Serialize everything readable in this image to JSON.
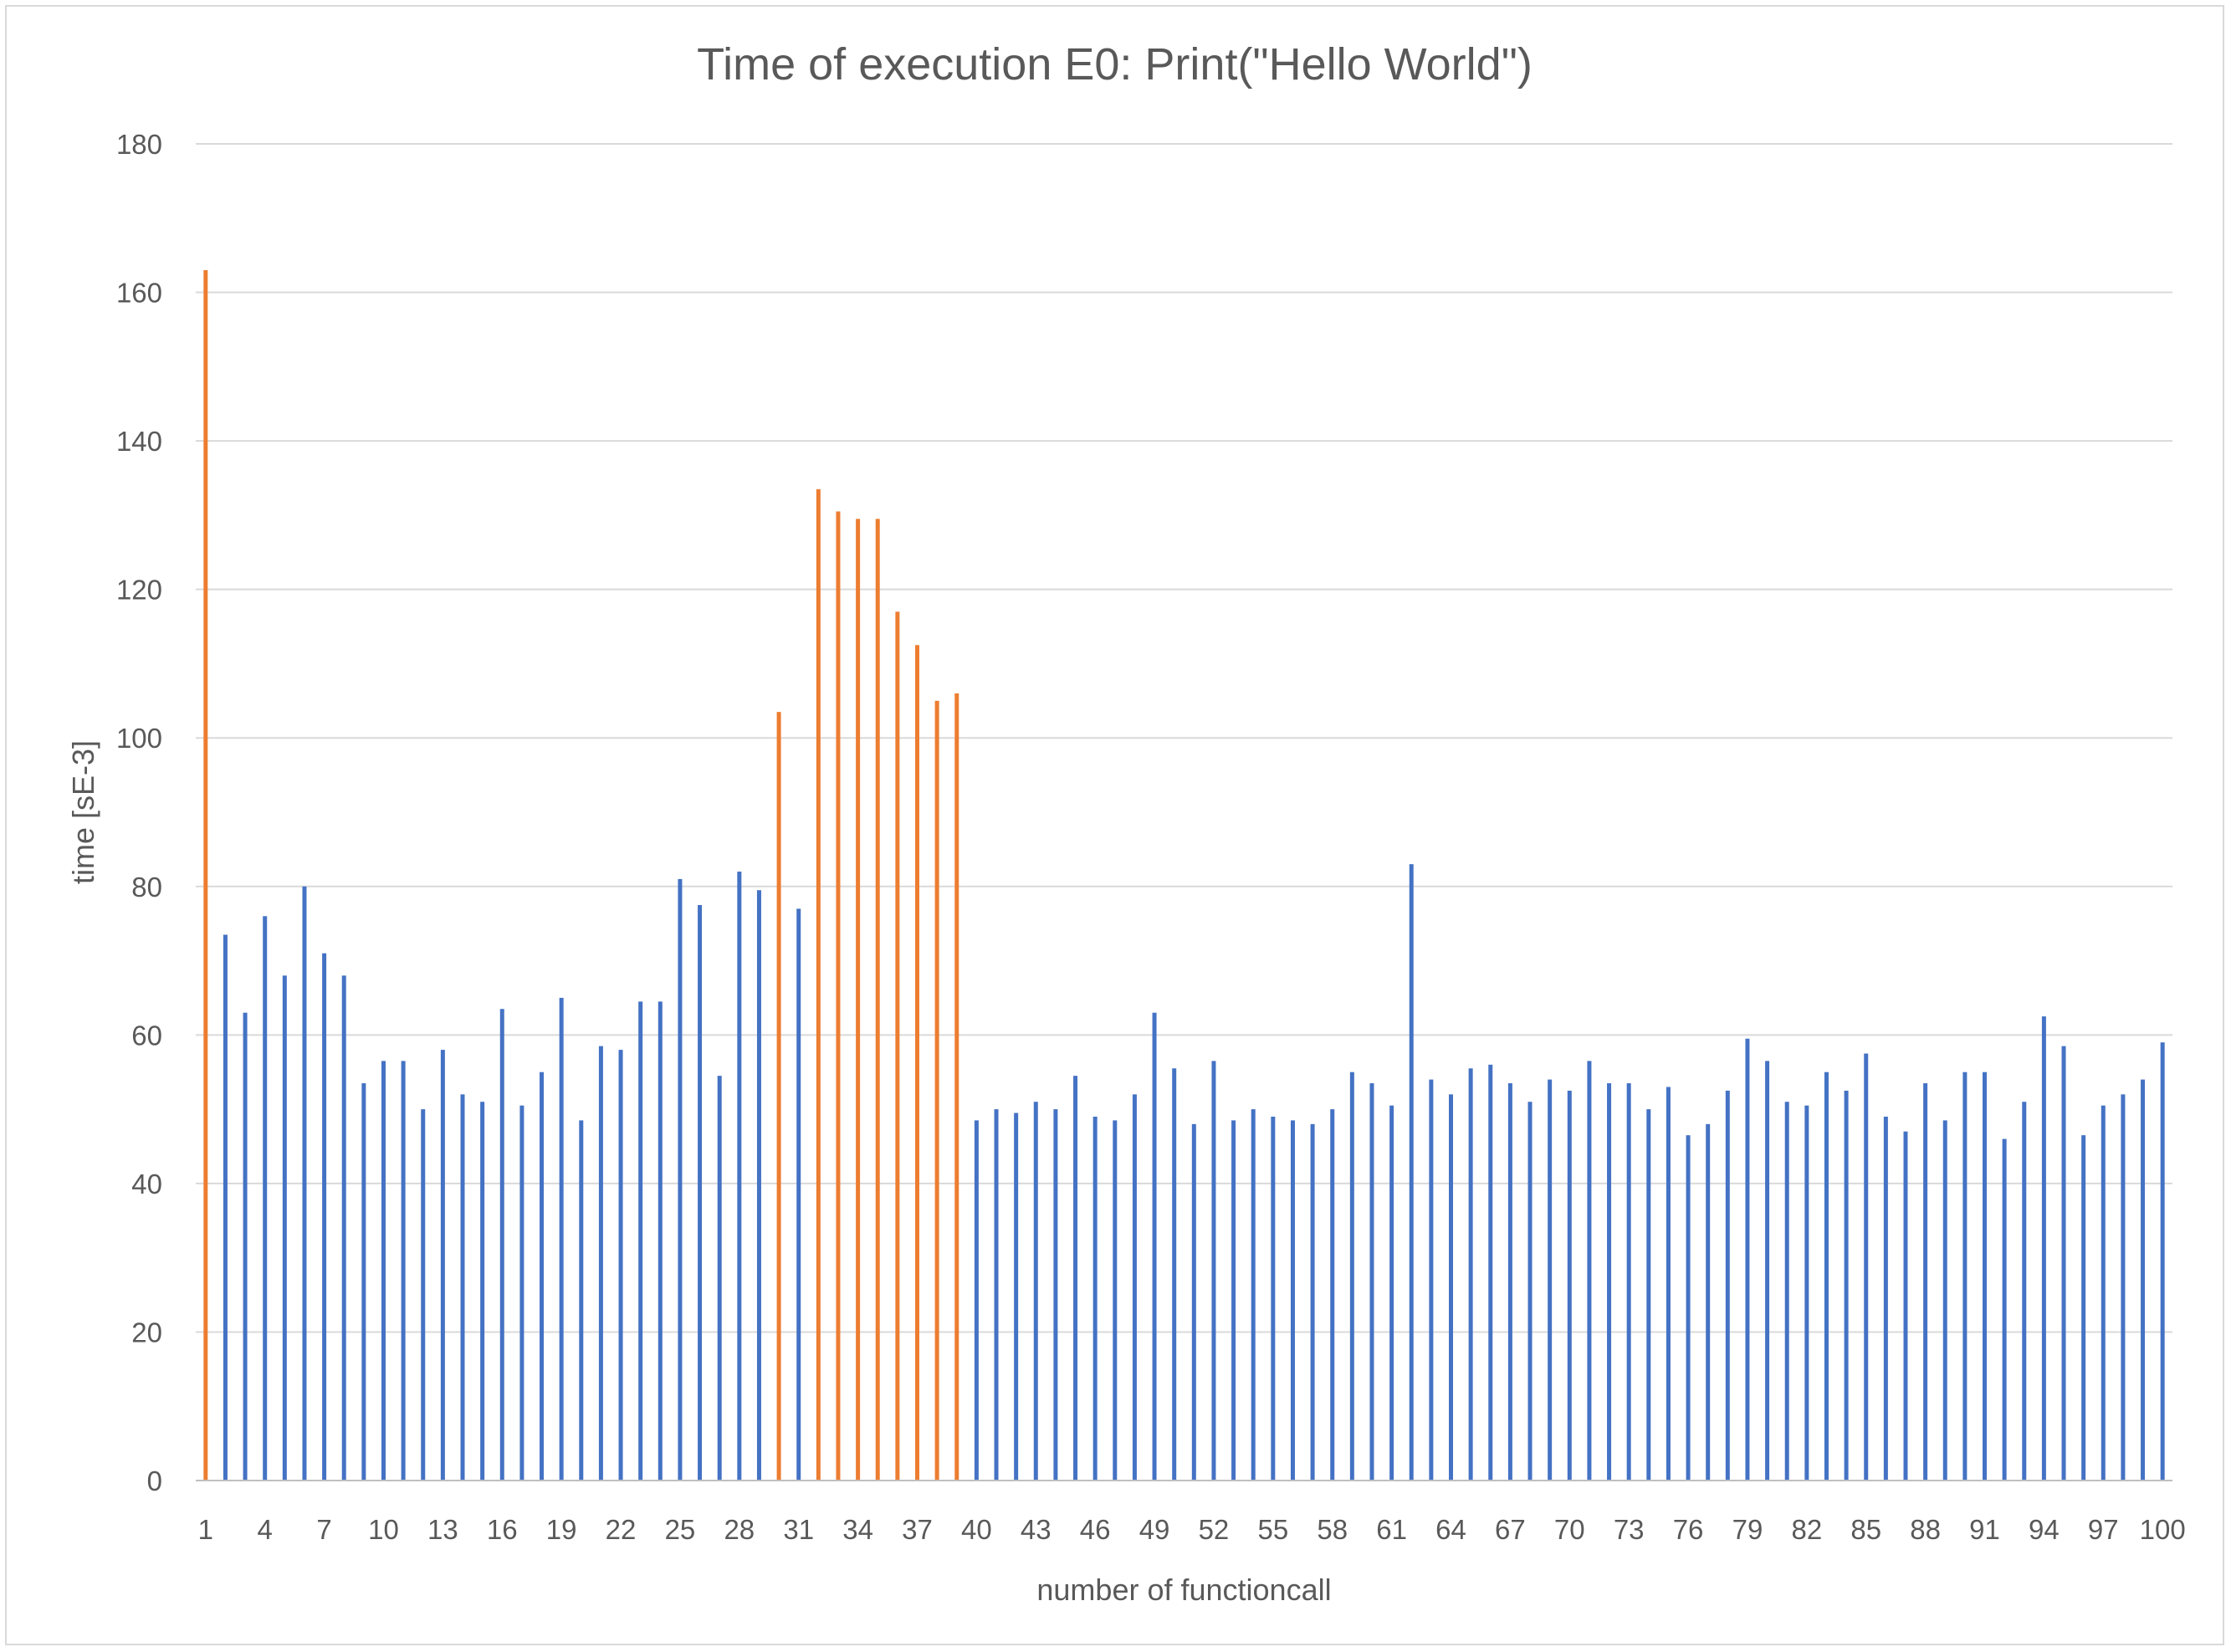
{
  "chart_data": {
    "type": "bar",
    "title": "Time of execution E0: Print(\"Hello World\")",
    "xlabel": "number of functioncall",
    "ylabel": "time [sE-3]",
    "ylim": [
      0,
      180
    ],
    "yticks": [
      0,
      20,
      40,
      60,
      80,
      100,
      120,
      140,
      160,
      180
    ],
    "xtick_labels": [
      "1",
      "4",
      "7",
      "10",
      "13",
      "16",
      "19",
      "22",
      "25",
      "28",
      "31",
      "34",
      "37",
      "40",
      "43",
      "46",
      "49",
      "52",
      "55",
      "58",
      "61",
      "64",
      "67",
      "70",
      "73",
      "76",
      "79",
      "82",
      "85",
      "88",
      "91",
      "94",
      "97",
      "100"
    ],
    "grid": true,
    "legend": "none",
    "colors": {
      "normal": "#4472c4",
      "highlight": "#ed7d31",
      "grid": "#d9d9d9",
      "axis": "#bfbfbf",
      "text": "#595959"
    },
    "categories": [
      1,
      2,
      3,
      4,
      5,
      6,
      7,
      8,
      9,
      10,
      11,
      12,
      13,
      14,
      15,
      16,
      17,
      18,
      19,
      20,
      21,
      22,
      23,
      24,
      25,
      26,
      27,
      28,
      29,
      30,
      31,
      32,
      33,
      34,
      35,
      36,
      37,
      38,
      39,
      40,
      41,
      42,
      43,
      44,
      45,
      46,
      47,
      48,
      49,
      50,
      51,
      52,
      53,
      54,
      55,
      56,
      57,
      58,
      59,
      60,
      61,
      62,
      63,
      64,
      65,
      66,
      67,
      68,
      69,
      70,
      71,
      72,
      73,
      74,
      75,
      76,
      77,
      78,
      79,
      80,
      81,
      82,
      83,
      84,
      85,
      86,
      87,
      88,
      89,
      90,
      91,
      92,
      93,
      94,
      95,
      96,
      97,
      98,
      99,
      100
    ],
    "values": [
      163,
      73.5,
      63,
      76,
      68,
      80,
      71,
      68,
      53.5,
      56.5,
      56.5,
      50,
      58,
      52,
      51,
      63.5,
      50.5,
      55,
      65,
      48.5,
      58.5,
      58,
      64.5,
      64.5,
      81,
      77.5,
      54.5,
      82,
      79.5,
      103.5,
      77,
      133.5,
      130.5,
      129.5,
      129.5,
      117,
      112.5,
      105,
      106,
      48.5,
      50,
      49.5,
      51,
      50,
      54.5,
      49,
      48.5,
      52,
      63,
      55.5,
      48,
      56.5,
      48.5,
      50,
      49,
      48.5,
      48,
      50,
      55,
      53.5,
      50.5,
      83,
      54,
      52,
      55.5,
      56,
      53.5,
      51,
      54,
      52.5,
      56.5,
      53.5,
      53.5,
      50,
      53,
      46.5,
      48,
      52.5,
      59.5,
      56.5,
      51,
      50.5,
      55,
      52.5,
      57.5,
      49,
      47,
      53.5,
      48.5,
      55,
      55,
      46,
      51,
      62.5,
      58.5,
      46.5,
      50.5,
      52,
      54,
      59
    ],
    "highlighted": [
      1,
      30,
      32,
      33,
      34,
      35,
      36,
      37,
      38,
      39
    ]
  }
}
